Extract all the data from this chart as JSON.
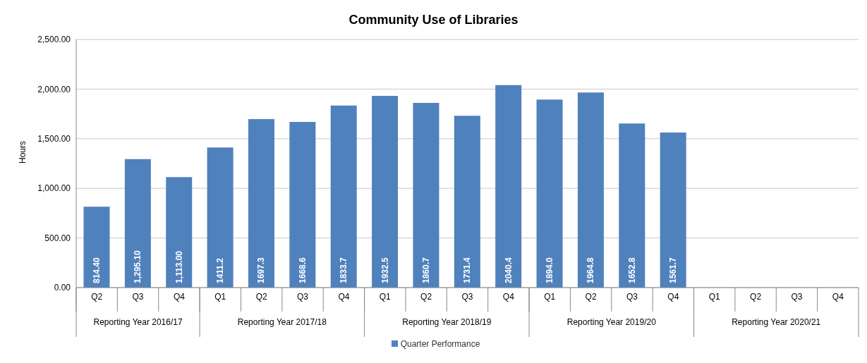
{
  "chart_data": {
    "type": "bar",
    "title": "Community  Use of Libraries",
    "ylabel": "Hours",
    "categories": [
      "Q2",
      "Q3",
      "Q4",
      "Q1",
      "Q2",
      "Q3",
      "Q4",
      "Q1",
      "Q2",
      "Q3",
      "Q4",
      "Q1",
      "Q2",
      "Q3",
      "Q4",
      "Q1",
      "Q2",
      "Q3",
      "Q4"
    ],
    "series": [
      {
        "name": "Quarter Performance",
        "color": "#4f81bd",
        "values": [
          814.4,
          1295.1,
          1113.0,
          1411.2,
          1697.3,
          1668.6,
          1833.7,
          1932.5,
          1860.7,
          1731.4,
          2040.4,
          1894.0,
          1964.8,
          1652.8,
          1561.7,
          null,
          null,
          null,
          null
        ],
        "value_labels": [
          "814.40",
          "1,295.10",
          "1,113.00",
          "1411.2",
          "1697.3",
          "1668.6",
          "1833.7",
          "1932.5",
          "1860.7",
          "1731.4",
          "2040.4",
          "1894.0",
          "1964.8",
          "1652.8",
          "1561.7",
          null,
          null,
          null,
          null
        ]
      }
    ],
    "annotations": [
      "Reporting Year 2016/17",
      "Reporting Year 2017/18",
      "Reporting Year 2018/19",
      "Reporting Year 2019/20",
      "Reporting Year 2020/21"
    ],
    "ylim": [
      0,
      2500
    ],
    "yticks": [
      {
        "value": 0,
        "label": "0.00"
      },
      {
        "value": 500,
        "label": "500.00"
      },
      {
        "value": 1000,
        "label": "1,000.00"
      },
      {
        "value": 1500,
        "label": "1,500.00"
      },
      {
        "value": 2000,
        "label": "2,000.00"
      },
      {
        "value": 2500,
        "label": "2,500.00"
      }
    ],
    "grid": "y",
    "legend": "bottom"
  }
}
